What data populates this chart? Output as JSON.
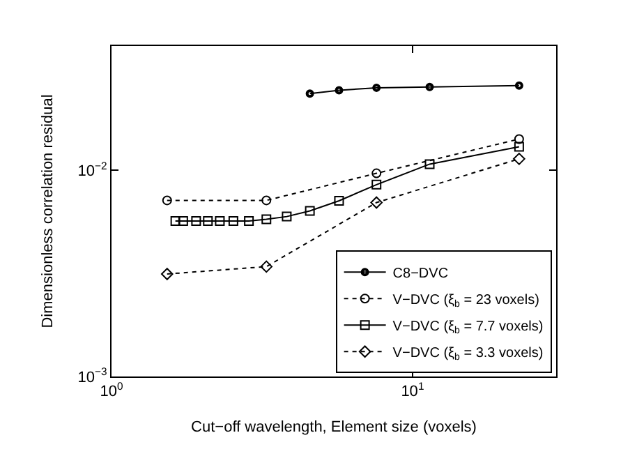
{
  "chart_data": {
    "type": "line",
    "xlabel": "Cut−off wavelength, Element size (voxels)",
    "ylabel": "Dimensionless correlation residual",
    "log": "xy",
    "xlim": [
      1,
      30
    ],
    "ylim": [
      0.001,
      0.04
    ],
    "xticks": [
      {
        "value": 1,
        "label": "10$^{0}$"
      },
      {
        "value": 10,
        "label": "10$^{1}$"
      }
    ],
    "yticks": [
      {
        "value": 0.001,
        "label": "10$^{−3}$"
      },
      {
        "value": 0.01,
        "label": "10$^{−2}$"
      }
    ],
    "legend": "bottom right",
    "series": [
      {
        "name": "C8−DVC",
        "color": "#000000",
        "marker": "circle",
        "line_style": "solid",
        "x": [
          4.56,
          5.7,
          7.59,
          11.4,
          22.6
        ],
        "values": [
          0.0235,
          0.0244,
          0.0251,
          0.0253,
          0.0257
        ]
      },
      {
        "name": "V−DVC (ξ$_{b}$ = 23 voxels)",
        "color": "#000000",
        "marker": "circle",
        "line_style": "dotted",
        "x": [
          1.53,
          3.27,
          7.59,
          22.6
        ],
        "values": [
          0.00714,
          0.00714,
          0.00966,
          0.01416
        ]
      },
      {
        "name": "V−DVC (ξ$_{b}$ = 7.7 voxels)",
        "color": "#000000",
        "marker": "square",
        "line_style": "solid",
        "x": [
          1.63,
          1.73,
          1.91,
          2.09,
          2.29,
          2.54,
          2.86,
          3.27,
          3.82,
          4.56,
          5.7,
          7.59,
          11.4,
          22.6
        ],
        "values": [
          0.00567,
          0.00567,
          0.00567,
          0.00567,
          0.00567,
          0.00567,
          0.00567,
          0.00578,
          0.00596,
          0.00635,
          0.00711,
          0.00851,
          0.0107,
          0.013
        ]
      },
      {
        "name": "V−DVC (ξ$_{b}$ = 3.3 voxels)",
        "color": "#000000",
        "marker": "diamond",
        "line_style": "dotted",
        "x": [
          1.53,
          3.27,
          7.59,
          22.6
        ],
        "values": [
          0.00314,
          0.00341,
          0.00697,
          0.01135
        ]
      }
    ]
  }
}
